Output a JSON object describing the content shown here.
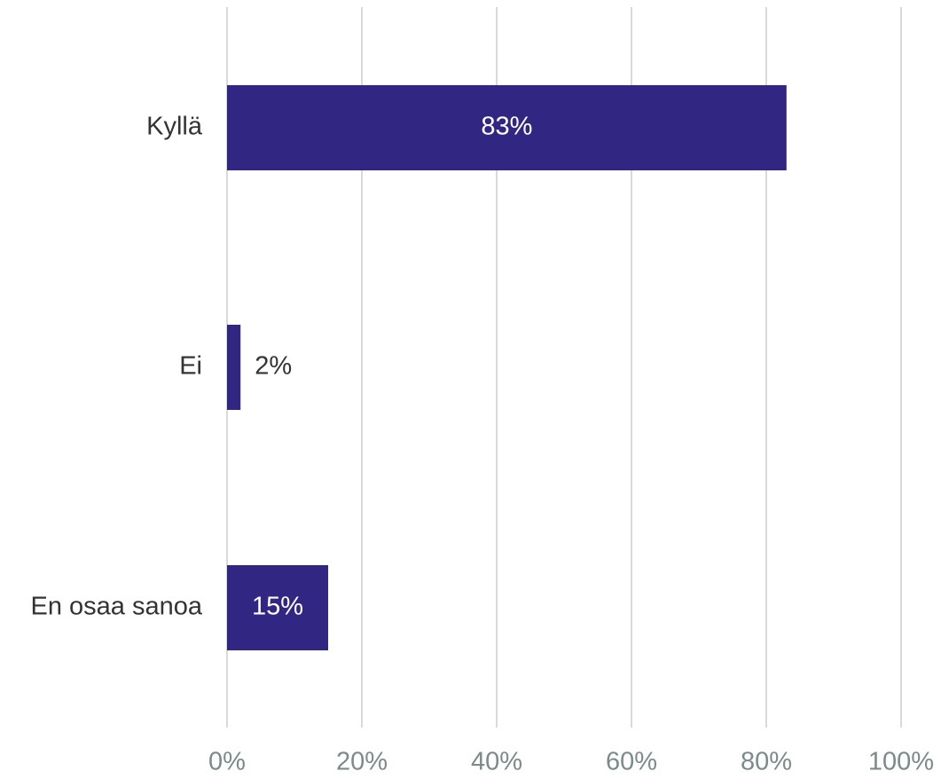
{
  "chart_data": {
    "type": "bar",
    "orientation": "horizontal",
    "categories": [
      "Kyllä",
      "Ei",
      "En osaa sanoa"
    ],
    "values": [
      83,
      2,
      15
    ],
    "value_labels": [
      "83%",
      "2%",
      "15%"
    ],
    "xlim": [
      0,
      100
    ],
    "x_ticks": [
      0,
      20,
      40,
      60,
      80,
      100
    ],
    "x_tick_labels": [
      "0%",
      "20%",
      "40%",
      "60%",
      "80%",
      "100%"
    ],
    "grid": true,
    "legend": "none",
    "title": "",
    "xlabel": "",
    "ylabel": ""
  },
  "colors": {
    "bar": "#312783",
    "label_inside": "#ffffff",
    "label_outside": "#333333",
    "category_text": "#333333",
    "tick_text": "#7b8a8b",
    "grid": "#d9d9d9",
    "background": "#ffffff"
  }
}
